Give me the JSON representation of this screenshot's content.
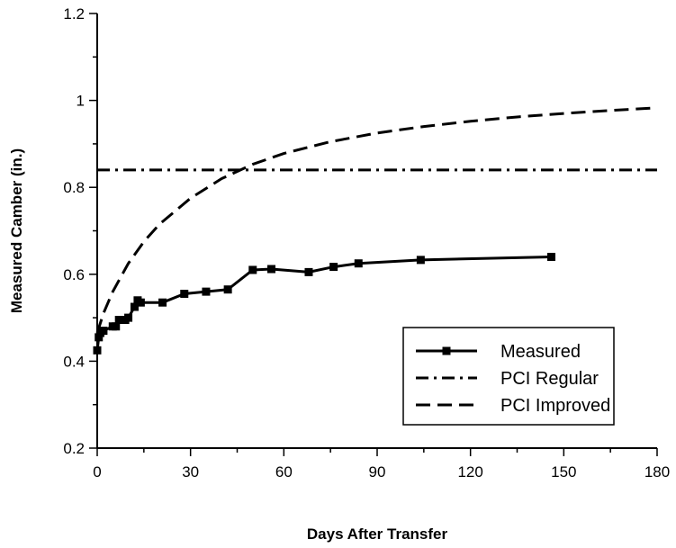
{
  "chart_data": {
    "type": "line",
    "xlabel": "Days After Transfer",
    "ylabel": "Measured Camber (in.)",
    "xlim": [
      0,
      180
    ],
    "ylim": [
      0.2,
      1.2
    ],
    "x_ticks": [
      0,
      30,
      60,
      90,
      120,
      150,
      180
    ],
    "x_tick_labels": [
      "0",
      "30",
      "60",
      "90",
      "120",
      "150",
      "180"
    ],
    "y_ticks": [
      0.2,
      0.4,
      0.6,
      0.8,
      1.0,
      1.2
    ],
    "y_tick_labels": [
      "0.2",
      "0.4",
      "0.6",
      "0.8",
      "1",
      "1.2"
    ],
    "grid": false,
    "legend_position": "bottom-right",
    "series": [
      {
        "name": "Measured",
        "style": "solid",
        "marker": "square",
        "color": "#000000",
        "x": [
          0,
          0.5,
          1,
          2,
          5,
          6,
          7,
          9,
          10,
          12,
          13,
          14,
          21,
          28,
          35,
          42,
          50,
          56,
          68,
          76,
          84,
          104,
          146
        ],
        "y": [
          0.425,
          0.455,
          0.465,
          0.47,
          0.48,
          0.48,
          0.495,
          0.495,
          0.5,
          0.525,
          0.54,
          0.535,
          0.535,
          0.555,
          0.56,
          0.565,
          0.61,
          0.612,
          0.605,
          0.617,
          0.625,
          0.633,
          0.64
        ]
      },
      {
        "name": "PCI Regular",
        "style": "dash-dot",
        "color": "#000000",
        "x": [
          0,
          180
        ],
        "y": [
          0.84,
          0.84
        ]
      },
      {
        "name": "PCI Improved",
        "style": "dashed",
        "color": "#000000",
        "x": [
          0,
          2,
          5,
          10,
          15,
          20,
          30,
          40,
          50,
          60,
          75,
          90,
          105,
          120,
          135,
          150,
          165,
          180
        ],
        "y": [
          0.465,
          0.51,
          0.56,
          0.625,
          0.675,
          0.715,
          0.775,
          0.82,
          0.853,
          0.878,
          0.905,
          0.925,
          0.94,
          0.952,
          0.962,
          0.97,
          0.977,
          0.983
        ]
      }
    ]
  }
}
